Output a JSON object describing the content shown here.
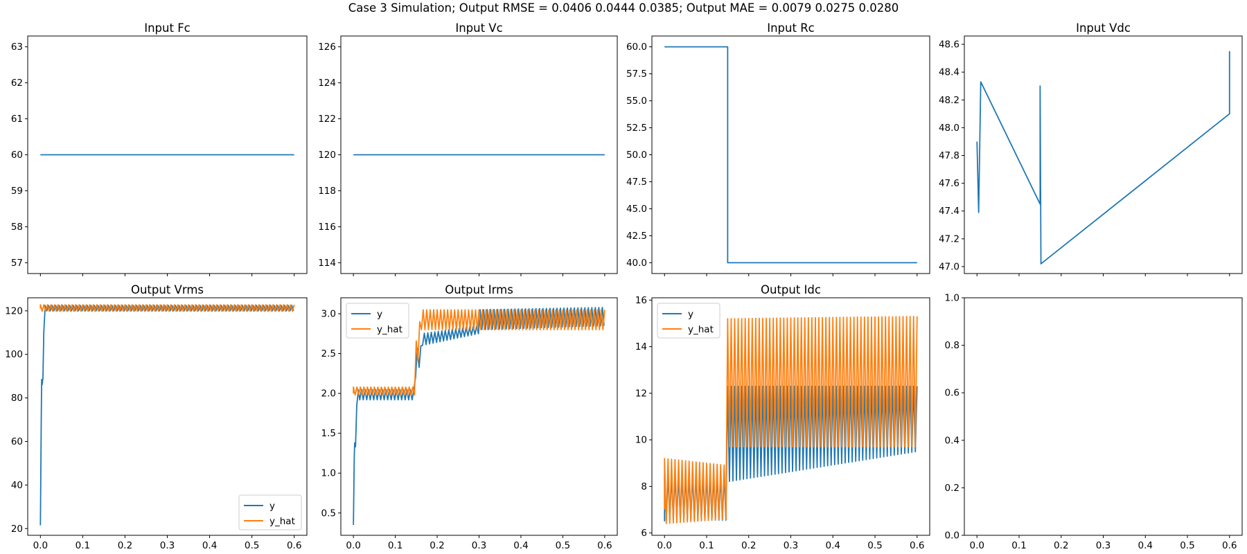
{
  "figure": {
    "suptitle": "Case 3 Simulation; Output RMSE = 0.0406 0.0444 0.0385; Output MAE = 0.0079 0.0275 0.0280"
  },
  "colors": {
    "y": "#1f77b4",
    "y_hat": "#ff7f0e"
  },
  "chart_data": [
    {
      "id": "fc",
      "type": "line",
      "title": "Input Fc",
      "xlim": [
        -0.03,
        0.63
      ],
      "ylim": [
        56.7,
        63.3
      ],
      "yticks": [
        57,
        58,
        59,
        60,
        61,
        62,
        63
      ],
      "ytick_decimals": 0,
      "xticks": [
        0.0,
        0.1,
        0.2,
        0.3,
        0.4,
        0.5,
        0.6
      ],
      "show_xticklabels": false,
      "series": [
        {
          "color_key": "y",
          "style": "const",
          "points": [
            [
              0.0,
              60
            ],
            [
              0.6,
              60
            ]
          ]
        }
      ]
    },
    {
      "id": "vc",
      "type": "line",
      "title": "Input Vc",
      "xlim": [
        -0.03,
        0.63
      ],
      "ylim": [
        113.4,
        126.6
      ],
      "yticks": [
        114,
        116,
        118,
        120,
        122,
        124,
        126
      ],
      "ytick_decimals": 0,
      "xticks": [
        0.0,
        0.1,
        0.2,
        0.3,
        0.4,
        0.5,
        0.6
      ],
      "show_xticklabels": false,
      "series": [
        {
          "color_key": "y",
          "style": "const",
          "points": [
            [
              0.0,
              120
            ],
            [
              0.6,
              120
            ]
          ]
        }
      ]
    },
    {
      "id": "rc",
      "type": "line",
      "title": "Input Rc",
      "xlim": [
        -0.03,
        0.63
      ],
      "ylim": [
        39.0,
        61.0
      ],
      "yticks": [
        40.0,
        42.5,
        45.0,
        47.5,
        50.0,
        52.5,
        55.0,
        57.5,
        60.0
      ],
      "ytick_decimals": 1,
      "xticks": [
        0.0,
        0.1,
        0.2,
        0.3,
        0.4,
        0.5,
        0.6
      ],
      "show_xticklabels": false,
      "series": [
        {
          "color_key": "y",
          "style": "const",
          "points": [
            [
              0.0,
              60
            ],
            [
              0.15,
              60
            ],
            [
              0.15,
              40
            ],
            [
              0.6,
              40
            ]
          ]
        }
      ]
    },
    {
      "id": "vdc",
      "type": "line",
      "title": "Input Vdc",
      "xlim": [
        -0.03,
        0.63
      ],
      "ylim": [
        46.95,
        48.66
      ],
      "yticks": [
        47.0,
        47.2,
        47.4,
        47.6,
        47.8,
        48.0,
        48.2,
        48.4,
        48.6
      ],
      "ytick_decimals": 1,
      "xticks": [
        0.0,
        0.1,
        0.2,
        0.3,
        0.4,
        0.5,
        0.6
      ],
      "show_xticklabels": false,
      "series": [
        {
          "color_key": "y",
          "style": "osc",
          "points": [
            [
              0.0,
              47.9
            ],
            [
              0.004,
              47.39
            ],
            [
              0.009,
              48.33
            ],
            [
              0.15,
              47.45
            ],
            [
              0.15,
              48.3
            ],
            [
              0.152,
              47.02
            ],
            [
              0.6,
              48.1
            ]
          ],
          "envelope": {
            "freq": 120,
            "start": 0.0,
            "segments": [
              {
                "t0": 0.0,
                "t1": 0.149,
                "hi": [
                  48.32,
                  48.32
                ],
                "lo": [
                  47.45,
                  47.45
                ]
              },
              {
                "t0": 0.152,
                "t1": 0.6,
                "hi": [
                  48.45,
                  48.55
                ],
                "lo": [
                  47.26,
                  47.28
                ]
              }
            ]
          }
        }
      ]
    },
    {
      "id": "vrms",
      "type": "line",
      "title": "Output Vrms",
      "xlim": [
        -0.03,
        0.63
      ],
      "ylim": [
        16.9,
        126.0
      ],
      "yticks": [
        20,
        40,
        60,
        80,
        100,
        120
      ],
      "ytick_decimals": 0,
      "xticks": [
        0.0,
        0.1,
        0.2,
        0.3,
        0.4,
        0.5,
        0.6
      ],
      "show_xticklabels": true,
      "legend": {
        "loc": "lower right",
        "entries": [
          "y",
          "y_hat"
        ]
      },
      "series": [
        {
          "name": "y",
          "color_key": "y",
          "style": "osc",
          "points": [
            [
              0.0,
              21.5
            ],
            [
              0.002,
              70
            ],
            [
              0.003,
              88.5
            ],
            [
              0.004,
              86
            ],
            [
              0.006,
              89
            ],
            [
              0.008,
              110
            ],
            [
              0.011,
              121
            ]
          ],
          "envelope": {
            "freq": 120,
            "start": 0.011,
            "segments": [
              {
                "t0": 0.011,
                "t1": 0.6,
                "hi": [
                  122.5,
                  122.5
                ],
                "lo": [
                  120.0,
                  120.0
                ]
              }
            ]
          }
        },
        {
          "name": "y_hat",
          "color_key": "y_hat",
          "style": "osc",
          "points": [
            [
              0.0,
              121.0
            ]
          ],
          "envelope": {
            "freq": 120,
            "start": 0.0,
            "segments": [
              {
                "t0": 0.0,
                "t1": 0.6,
                "hi": [
                  122.8,
                  122.8
                ],
                "lo": [
                  119.8,
                  119.8
                ]
              }
            ]
          }
        }
      ]
    },
    {
      "id": "irms",
      "type": "line",
      "title": "Output Irms",
      "xlim": [
        -0.03,
        0.63
      ],
      "ylim": [
        0.22,
        3.2
      ],
      "yticks": [
        0.5,
        1.0,
        1.5,
        2.0,
        2.5,
        3.0
      ],
      "ytick_decimals": 1,
      "xticks": [
        0.0,
        0.1,
        0.2,
        0.3,
        0.4,
        0.5,
        0.6
      ],
      "show_xticklabels": true,
      "legend": {
        "loc": "upper left",
        "entries": [
          "y",
          "y_hat"
        ]
      },
      "series": [
        {
          "name": "y",
          "color_key": "y",
          "style": "osc",
          "points": [
            [
              0.0,
              0.35
            ],
            [
              0.002,
              1.2
            ],
            [
              0.003,
              1.38
            ],
            [
              0.005,
              1.33
            ],
            [
              0.008,
              1.85
            ],
            [
              0.011,
              2.0
            ]
          ],
          "envelope": {
            "freq": 120,
            "start": 0.011,
            "segments": [
              {
                "t0": 0.011,
                "t1": 0.148,
                "hi": [
                  2.05,
                  2.05
                ],
                "lo": [
                  1.92,
                  1.92
                ]
              },
              {
                "t0": 0.148,
                "t1": 0.162,
                "hi": [
                  2.55,
                  2.6
                ],
                "lo": [
                  2.2,
                  2.4
                ]
              },
              {
                "t0": 0.162,
                "t1": 0.3,
                "hi": [
                  2.75,
                  2.85
                ],
                "lo": [
                  2.6,
                  2.75
                ]
              },
              {
                "t0": 0.3,
                "t1": 0.6,
                "hi": [
                  3.05,
                  3.08
                ],
                "lo": [
                  2.8,
                  2.85
                ]
              }
            ]
          }
        },
        {
          "name": "y_hat",
          "color_key": "y_hat",
          "style": "osc",
          "points": [
            [
              0.0,
              2.0
            ]
          ],
          "envelope": {
            "freq": 120,
            "start": 0.0,
            "segments": [
              {
                "t0": 0.0,
                "t1": 0.148,
                "hi": [
                  2.08,
                  2.08
                ],
                "lo": [
                  1.98,
                  1.98
                ]
              },
              {
                "t0": 0.148,
                "t1": 0.16,
                "hi": [
                  2.6,
                  2.95
                ],
                "lo": [
                  2.0,
                  2.8
                ]
              },
              {
                "t0": 0.16,
                "t1": 0.6,
                "hi": [
                  3.05,
                  3.05
                ],
                "lo": [
                  2.8,
                  2.8
                ]
              }
            ]
          }
        }
      ]
    },
    {
      "id": "idc",
      "type": "line",
      "title": "Output Idc",
      "xlim": [
        -0.03,
        0.63
      ],
      "ylim": [
        5.9,
        16.1
      ],
      "yticks": [
        6,
        8,
        10,
        12,
        14,
        16
      ],
      "ytick_decimals": 0,
      "xticks": [
        0.0,
        0.1,
        0.2,
        0.3,
        0.4,
        0.5,
        0.6
      ],
      "show_xticklabels": true,
      "legend": {
        "loc": "upper left",
        "entries": [
          "y",
          "y_hat"
        ]
      },
      "series": [
        {
          "name": "y",
          "color_key": "y",
          "style": "osc",
          "points": [
            [
              0.0,
              6.5
            ]
          ],
          "envelope": {
            "freq": 120,
            "start": 0.0,
            "segments": [
              {
                "t0": 0.0,
                "t1": 0.15,
                "hi": [
                  8.5,
                  8.5
                ],
                "lo": [
                  6.55,
                  6.55
                ]
              },
              {
                "t0": 0.15,
                "t1": 0.6,
                "hi": [
                  12.3,
                  12.3
                ],
                "lo": [
                  8.2,
                  9.5
                ]
              }
            ]
          }
        },
        {
          "name": "y_hat",
          "color_key": "y_hat",
          "style": "osc",
          "points": [
            [
              0.0,
              7.0
            ]
          ],
          "envelope": {
            "freq": 120,
            "start": 0.0,
            "segments": [
              {
                "t0": 0.0,
                "t1": 0.15,
                "hi": [
                  9.2,
                  8.9
                ],
                "lo": [
                  6.4,
                  6.6
                ]
              },
              {
                "t0": 0.15,
                "t1": 0.6,
                "hi": [
                  15.2,
                  15.3
                ],
                "lo": [
                  9.7,
                  9.7
                ]
              }
            ]
          }
        }
      ]
    },
    {
      "id": "empty",
      "type": "line",
      "title": "",
      "xlim": [
        -0.03,
        0.63
      ],
      "ylim": [
        0.0,
        1.0
      ],
      "yticks": [
        0.0,
        0.2,
        0.4,
        0.6,
        0.8,
        1.0
      ],
      "ytick_decimals": 1,
      "xticks": [
        0.0,
        0.1,
        0.2,
        0.3,
        0.4,
        0.5,
        0.6
      ],
      "show_xticklabels": true,
      "series": []
    }
  ]
}
